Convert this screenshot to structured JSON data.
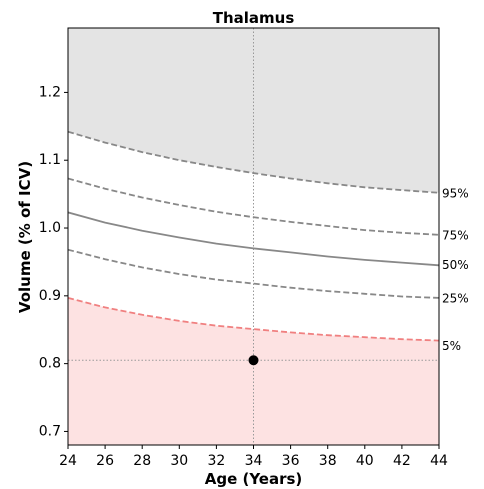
{
  "chart_data": {
    "type": "line",
    "title": "Thalamus",
    "xlabel": "Age (Years)",
    "ylabel": "Volume (% of ICV)",
    "xlim": [
      24,
      44
    ],
    "ylim": [
      0.68,
      1.295
    ],
    "x_ticks": [
      24,
      26,
      28,
      30,
      32,
      34,
      36,
      38,
      40,
      42,
      44
    ],
    "y_ticks": [
      0.7,
      0.8,
      0.9,
      1.0,
      1.1,
      1.2
    ],
    "y_tick_labels": [
      "0.7",
      "0.8",
      "0.9",
      "1.0",
      "1.1",
      "1.2"
    ],
    "x": [
      24,
      26,
      28,
      30,
      32,
      34,
      36,
      38,
      40,
      42,
      44
    ],
    "series": [
      {
        "name": "95%",
        "values": [
          1.142,
          1.126,
          1.112,
          1.1,
          1.09,
          1.081,
          1.073,
          1.066,
          1.06,
          1.056,
          1.052
        ],
        "style": "dashed",
        "color": "#888888"
      },
      {
        "name": "75%",
        "values": [
          1.073,
          1.058,
          1.045,
          1.034,
          1.024,
          1.016,
          1.009,
          1.003,
          0.997,
          0.993,
          0.99
        ],
        "style": "dashed",
        "color": "#888888"
      },
      {
        "name": "50%",
        "values": [
          1.023,
          1.008,
          0.996,
          0.986,
          0.977,
          0.97,
          0.964,
          0.958,
          0.953,
          0.949,
          0.945
        ],
        "style": "solid",
        "color": "#888888"
      },
      {
        "name": "25%",
        "values": [
          0.968,
          0.954,
          0.942,
          0.932,
          0.924,
          0.918,
          0.912,
          0.907,
          0.903,
          0.899,
          0.897
        ],
        "style": "dashed",
        "color": "#888888"
      },
      {
        "name": "5%",
        "values": [
          0.897,
          0.883,
          0.872,
          0.863,
          0.856,
          0.851,
          0.846,
          0.842,
          0.839,
          0.836,
          0.834
        ],
        "style": "dashed",
        "color": "#f08080"
      }
    ],
    "upper_region_color": "#e4e4e4",
    "lower_region_color": "#fde2e2",
    "marker": {
      "x": 34,
      "y": 0.805,
      "color": "#000000"
    },
    "reference_lines": {
      "x": 34,
      "y": 0.805
    },
    "grid": false
  }
}
